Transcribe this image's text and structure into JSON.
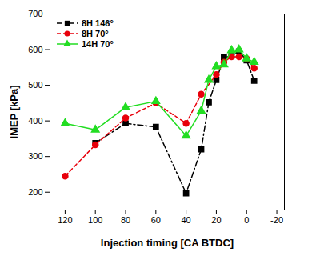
{
  "chart_data": {
    "type": "line",
    "x_label": "Injection timing [CA BTDC]",
    "y_label": "IMEP [kPa]",
    "xlim": [
      130,
      -25
    ],
    "xticks": [
      120,
      100,
      80,
      60,
      40,
      20,
      0,
      -20
    ],
    "ylim": [
      150,
      700
    ],
    "yticks": [
      200,
      300,
      400,
      500,
      600,
      700
    ],
    "legend": "upper left",
    "series": [
      {
        "name": "8H 146°",
        "color": "#000000",
        "marker": "square",
        "line_style": "dashdot",
        "x": [
          100,
          80,
          60,
          40,
          30,
          25,
          20,
          15,
          10,
          5,
          0,
          -5
        ],
        "values": [
          338,
          393,
          383,
          197,
          320,
          452,
          515,
          578,
          582,
          595,
          570,
          513
        ]
      },
      {
        "name": "8H 70°",
        "color": "#e8000b",
        "marker": "circle",
        "line_style": "dashed",
        "x": [
          120,
          100,
          80,
          60,
          40,
          30,
          20,
          15,
          10,
          5,
          0,
          -5
        ],
        "values": [
          245,
          333,
          408,
          450,
          393,
          475,
          530,
          565,
          580,
          580,
          575,
          548
        ]
      },
      {
        "name": "14H 70°",
        "color": "#22dd22",
        "marker": "triangle",
        "line_style": "solid",
        "x": [
          120,
          100,
          80,
          60,
          40,
          30,
          25,
          20,
          15,
          10,
          5,
          0,
          -5
        ],
        "values": [
          393,
          375,
          438,
          455,
          358,
          428,
          515,
          553,
          558,
          598,
          600,
          575,
          565
        ]
      }
    ]
  }
}
